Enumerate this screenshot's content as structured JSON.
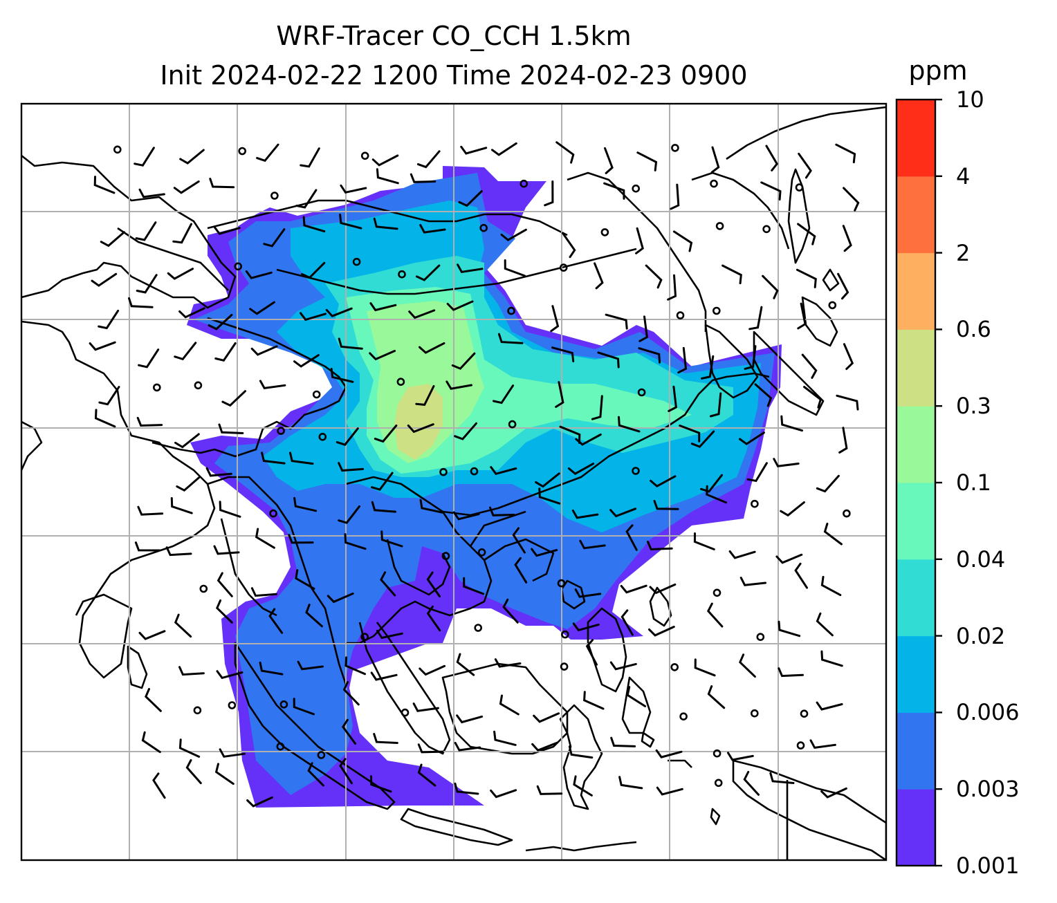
{
  "title": {
    "line1": "WRF-Tracer CO_CCH 1.5km",
    "line2": "Init 2024-02-22 1200 Time 2024-02-23 0900"
  },
  "colorbar": {
    "unit": "ppm",
    "levels": [
      "0.001",
      "0.003",
      "0.006",
      "0.02",
      "0.04",
      "0.1",
      "0.3",
      "0.6",
      "2",
      "4",
      "10"
    ],
    "colors": [
      "#6530f8",
      "#3275f0",
      "#04b4e8",
      "#30dcd3",
      "#68f8bc",
      "#99f89a",
      "#cde084",
      "#feb060",
      "#fe713c",
      "#fe2e18"
    ]
  },
  "map": {
    "grid": true,
    "gridline_color": "#b0b0b0",
    "coastline_color": "#000000",
    "tracer_field": "CO_CCH",
    "wind_symbols": "barbs and calm circles"
  }
}
